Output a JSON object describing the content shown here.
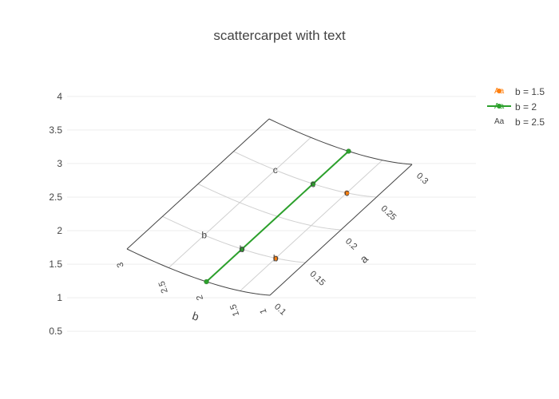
{
  "chart_data": {
    "type": "scatter",
    "subtype": "scattercarpet",
    "title": "scattercarpet with text",
    "y_axis": {
      "ticks": [
        "0.5",
        "1",
        "1.5",
        "2",
        "2.5",
        "3",
        "3.5",
        "4"
      ],
      "range": [
        0.3,
        4.2
      ],
      "grid": true
    },
    "carpet": {
      "a": [
        0.1,
        0.15,
        0.2,
        0.25,
        0.3
      ],
      "b": [
        1,
        1.5,
        2,
        2.5,
        3
      ],
      "a_title": "a",
      "b_title": "b",
      "a_ticks": [
        "0.1",
        "0.15",
        "0.2",
        "0.25",
        "0.3"
      ],
      "b_ticks": [
        "1",
        "1.5",
        "2",
        "2.5",
        "3"
      ]
    },
    "series": [
      {
        "name": "b = 1.5",
        "mode": "markers+text",
        "color": "#ff7f0e",
        "a": [
          0.15,
          0.25
        ],
        "b": [
          1.5,
          1.5
        ],
        "text": [
          "b",
          "c"
        ]
      },
      {
        "name": "b = 2",
        "mode": "lines+markers+text",
        "color": "#2ca02c",
        "a": [
          0.1,
          0.15,
          0.25,
          0.3
        ],
        "b": [
          2,
          2,
          2,
          2
        ],
        "text": [
          "",
          "b",
          "c",
          ""
        ]
      },
      {
        "name": "b = 2.5",
        "mode": "text",
        "color": "#444444",
        "a": [
          0.15,
          0.25
        ],
        "b": [
          2.5,
          2.5
        ],
        "text": [
          "b",
          "c"
        ]
      }
    ],
    "legend": {
      "position": "top-right",
      "symbol_text": "Aa"
    }
  }
}
